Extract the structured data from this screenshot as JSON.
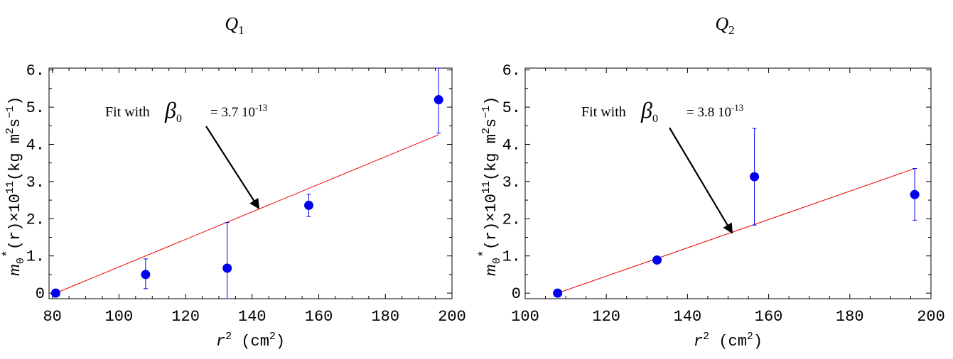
{
  "chart_data": [
    {
      "type": "scatter",
      "title_main": "Q",
      "title_sub": "1",
      "xlabel_main": "r",
      "xlabel_sup": "2",
      "xlabel_units_open": "(cm",
      "xlabel_units_sup": "2",
      "xlabel_units_close": ")",
      "ylabel": {
        "m": "m",
        "m_sub": "0",
        "star": "*",
        "r": "(r)",
        "times": "×10",
        "exp": "11",
        "open": "(kg m",
        "m_exp": "2",
        "s": "s",
        "s_exp": "−1",
        "close": ")"
      },
      "xlim": [
        79,
        200
      ],
      "ylim": [
        -0.15,
        6.05
      ],
      "xticks": [
        80,
        100,
        120,
        140,
        160,
        180,
        200
      ],
      "xtick_labels": [
        "80",
        "100",
        "120",
        "140",
        "160",
        "180",
        "200"
      ],
      "yticks": [
        0,
        1,
        2,
        3,
        4,
        5,
        6
      ],
      "ytick_labels": [
        "0",
        "1.",
        "2.",
        "3.",
        "4.",
        "5.",
        "6."
      ],
      "points": [
        {
          "x": 81,
          "y": 0.0,
          "err_lo": 0.0,
          "err_hi": 0.0
        },
        {
          "x": 108,
          "y": 0.5,
          "err_lo": 0.12,
          "err_hi": 0.92
        },
        {
          "x": 132.5,
          "y": 0.67,
          "err_lo": -0.15,
          "err_hi": 1.9
        },
        {
          "x": 157,
          "y": 2.36,
          "err_lo": 2.06,
          "err_hi": 2.66
        },
        {
          "x": 196,
          "y": 5.2,
          "err_lo": 4.3,
          "err_hi": 6.05
        }
      ],
      "fit_line": {
        "x": [
          81,
          196
        ],
        "y": [
          0.0,
          4.26
        ]
      },
      "annotation": {
        "prefix": "Fit with",
        "symbol": "β",
        "symbol_sub": "0",
        "value": "= 3.7 10",
        "exp": "-13",
        "arrow_to": {
          "x": 142,
          "y": 2.28
        }
      },
      "colors": {
        "points": "#0000ee",
        "fit": "#ee0000",
        "axis": "#000000"
      }
    },
    {
      "type": "scatter",
      "title_main": "Q",
      "title_sub": "2",
      "xlabel_main": "r",
      "xlabel_sup": "2",
      "xlabel_units_open": "(cm",
      "xlabel_units_sup": "2",
      "xlabel_units_close": ")",
      "ylabel": {
        "m": "m",
        "m_sub": "0",
        "star": "*",
        "r": "(r)",
        "times": "×10",
        "exp": "11",
        "open": "(kg m",
        "m_exp": "2",
        "s": "s",
        "s_exp": "−1",
        "close": ")"
      },
      "xlim": [
        100,
        200
      ],
      "ylim": [
        -0.15,
        6.05
      ],
      "xticks": [
        100,
        120,
        140,
        160,
        180,
        200
      ],
      "xtick_labels": [
        "100",
        "120",
        "140",
        "160",
        "180",
        "200"
      ],
      "yticks": [
        0,
        1,
        2,
        3,
        4,
        5,
        6
      ],
      "ytick_labels": [
        "0",
        "1.",
        "2.",
        "3.",
        "4.",
        "5.",
        "6."
      ],
      "points": [
        {
          "x": 108,
          "y": 0.0,
          "err_lo": -0.08,
          "err_hi": 0.08
        },
        {
          "x": 132.5,
          "y": 0.89,
          "err_lo": 0.8,
          "err_hi": 0.98
        },
        {
          "x": 156.5,
          "y": 3.13,
          "err_lo": 1.83,
          "err_hi": 4.43
        },
        {
          "x": 196,
          "y": 2.65,
          "err_lo": 1.96,
          "err_hi": 3.35
        }
      ],
      "fit_line": {
        "x": [
          108,
          196
        ],
        "y": [
          0.0,
          3.35
        ]
      },
      "annotation": {
        "prefix": "Fit with",
        "symbol": "β",
        "symbol_sub": "0",
        "value": "= 3.8 10",
        "exp": "-13",
        "arrow_to": {
          "x": 151,
          "y": 1.62
        }
      },
      "colors": {
        "points": "#0000ee",
        "fit": "#ee0000",
        "axis": "#000000"
      }
    }
  ]
}
